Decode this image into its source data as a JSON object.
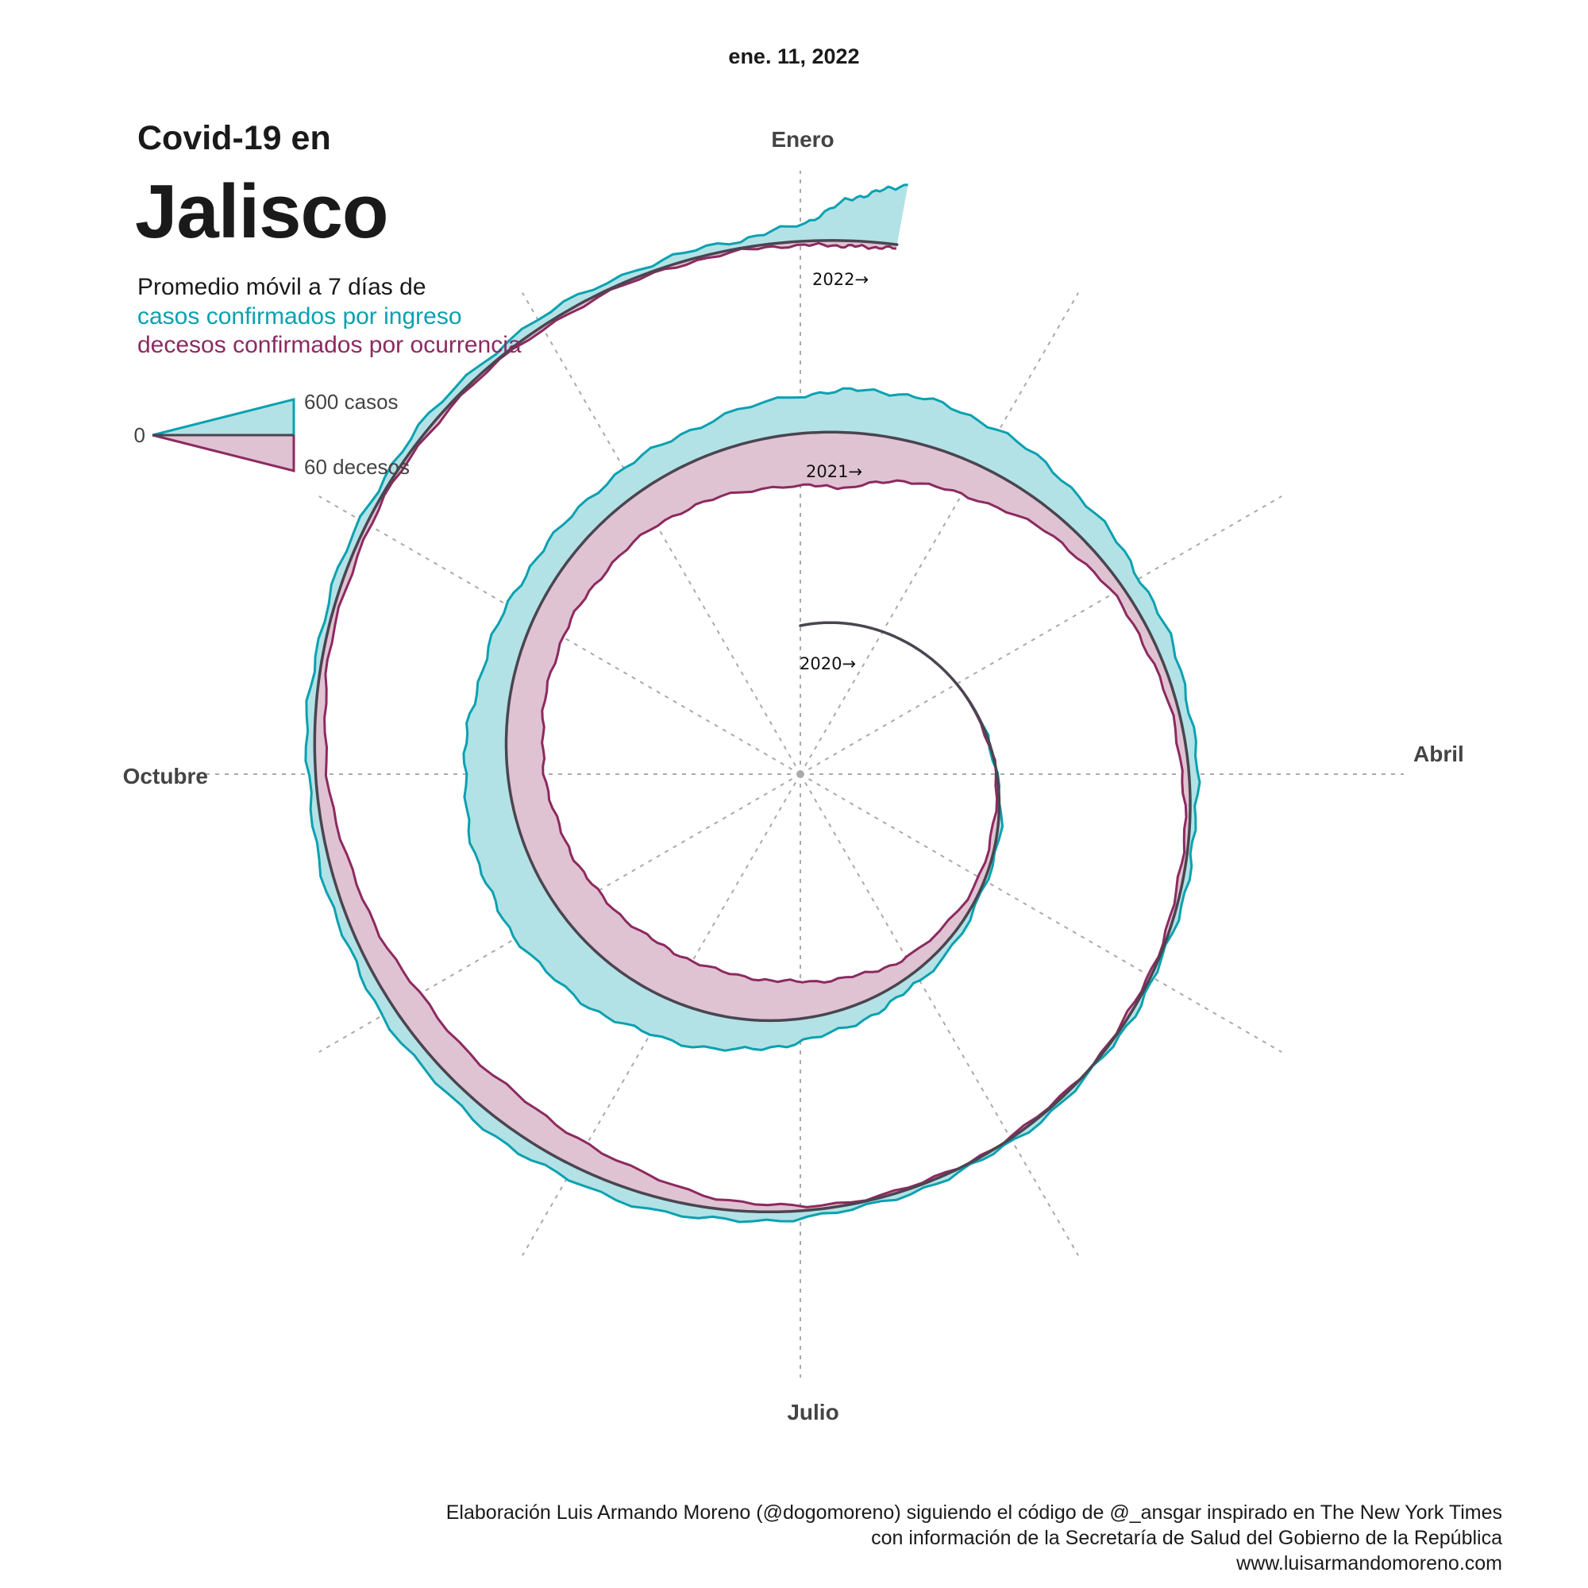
{
  "date_label": "ene. 11, 2022",
  "title": {
    "line1": "Covid-19 en",
    "line2": "Jalisco"
  },
  "subtitle": "Promedio móvil a 7 días de",
  "series_labels": {
    "cases": "casos confirmados por ingreso",
    "deaths": "decesos confirmados por ocurrencia"
  },
  "colors": {
    "cases": "#0aa1b0",
    "cases_fill": "#b2e2e6",
    "deaths": "#8c2a60",
    "deaths_fill": "#e0c3d2",
    "baseline": "#4a4550",
    "grid": "#aaaaaa"
  },
  "legend": {
    "zero": "0",
    "cases": "600 casos",
    "deaths": "60 decesos"
  },
  "credits": [
    "Elaboración Luis Armando Moreno (@dogomoreno) siguiendo el código de @_ansgar inspirado en The New York Times",
    "con información de la Secretaría de Salud del Gobierno de la República",
    "www.luisarmandomoreno.com"
  ],
  "chart_data": {
    "type": "area",
    "layout": "spiral (one turn per year, clockwise from January at top)",
    "month_labels": [
      "Enero",
      "Abril",
      "Julio",
      "Octubre"
    ],
    "year_labels": [
      "2020→",
      "2021→",
      "2022→"
    ],
    "x_range": [
      "2020-03-01",
      "2022-01-11"
    ],
    "scale": {
      "cases": 600,
      "deaths": 60
    },
    "series": [
      {
        "name": "casos confirmados por ingreso",
        "x": [
          "2020-03-01",
          "2020-04-01",
          "2020-05-01",
          "2020-06-01",
          "2020-06-15",
          "2020-07-01",
          "2020-07-15",
          "2020-08-01",
          "2020-08-15",
          "2020-09-01",
          "2020-09-15",
          "2020-10-01",
          "2020-10-15",
          "2020-11-01",
          "2020-11-15",
          "2020-12-01",
          "2020-12-15",
          "2021-01-01",
          "2021-01-10",
          "2021-01-20",
          "2021-02-01",
          "2021-02-15",
          "2021-03-01",
          "2021-03-15",
          "2021-04-01",
          "2021-04-15",
          "2021-05-01",
          "2021-05-15",
          "2021-06-01",
          "2021-06-15",
          "2021-07-01",
          "2021-07-15",
          "2021-08-01",
          "2021-08-15",
          "2021-09-01",
          "2021-09-15",
          "2021-10-01",
          "2021-10-15",
          "2021-11-01",
          "2021-11-15",
          "2021-12-01",
          "2021-12-15",
          "2021-12-25",
          "2022-01-01",
          "2022-01-05",
          "2022-01-08",
          "2022-01-11"
        ],
        "values": [
          0,
          5,
          20,
          70,
          120,
          170,
          240,
          300,
          360,
          390,
          380,
          330,
          260,
          220,
          200,
          210,
          230,
          290,
          330,
          340,
          300,
          220,
          150,
          110,
          60,
          35,
          25,
          25,
          25,
          30,
          50,
          90,
          110,
          115,
          100,
          75,
          60,
          55,
          55,
          60,
          60,
          55,
          60,
          130,
          300,
          380,
          460
        ]
      },
      {
        "name": "decesos confirmados por ocurrencia",
        "x": [
          "2020-03-01",
          "2020-04-01",
          "2020-05-01",
          "2020-06-01",
          "2020-06-15",
          "2020-07-01",
          "2020-07-15",
          "2020-08-01",
          "2020-08-15",
          "2020-09-01",
          "2020-09-15",
          "2020-10-01",
          "2020-10-15",
          "2020-11-01",
          "2020-11-15",
          "2020-12-01",
          "2020-12-15",
          "2021-01-01",
          "2021-01-10",
          "2021-01-20",
          "2021-02-01",
          "2021-02-15",
          "2021-03-01",
          "2021-03-15",
          "2021-04-01",
          "2021-04-15",
          "2021-05-01",
          "2021-05-15",
          "2021-06-01",
          "2021-06-15",
          "2021-07-01",
          "2021-07-15",
          "2021-08-01",
          "2021-08-15",
          "2021-09-01",
          "2021-09-15",
          "2021-10-01",
          "2021-10-15",
          "2021-11-01",
          "2021-11-15",
          "2021-12-01",
          "2021-12-15",
          "2021-12-25",
          "2022-01-01",
          "2022-01-05",
          "2022-01-08",
          "2022-01-11"
        ],
        "values": [
          0,
          1,
          5,
          12,
          20,
          28,
          32,
          34,
          34,
          32,
          30,
          28,
          27,
          26,
          27,
          28,
          33,
          40,
          42,
          30,
          25,
          15,
          9,
          7,
          5,
          3,
          2,
          1,
          1,
          1,
          3,
          9,
          20,
          24,
          22,
          16,
          9,
          5,
          3,
          2,
          2,
          2,
          2,
          3,
          4,
          4,
          3
        ]
      }
    ]
  }
}
